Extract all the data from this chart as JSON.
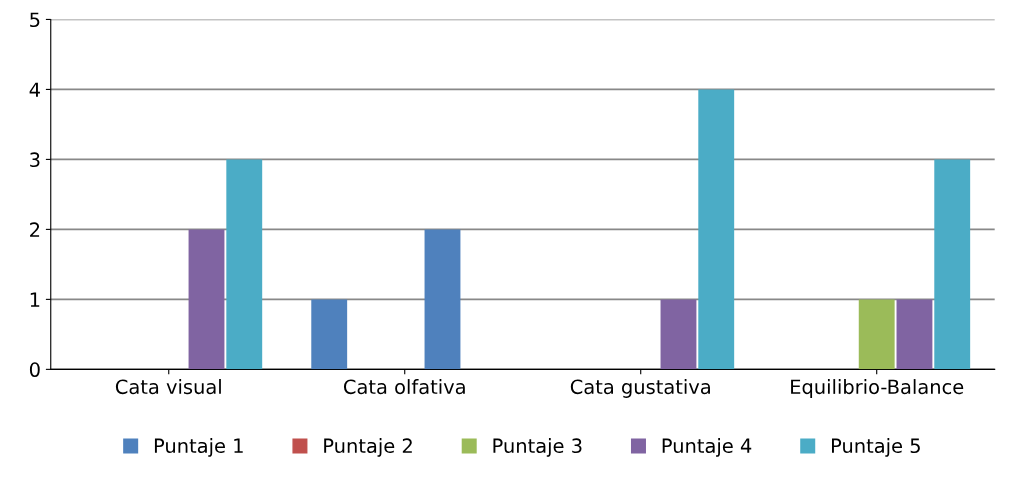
{
  "chart_data": {
    "type": "bar",
    "categories": [
      "Cata visual",
      "Cata olfativa",
      "Cata gustativa",
      "Equilibrio-Balance"
    ],
    "series": [
      {
        "name": "Puntaje 1",
        "color": "#4f81bd",
        "values": [
          0,
          1,
          0,
          0
        ]
      },
      {
        "name": "Puntaje 2",
        "color": "#c0504d",
        "values": [
          0,
          0,
          0,
          0
        ]
      },
      {
        "name": "Puntaje 3",
        "color": "#9bbb59",
        "values": [
          0,
          0,
          0,
          1
        ]
      },
      {
        "name": "Puntaje 4",
        "color": "#8064a2",
        "colors": [
          "#8064a2",
          "#4f81bd",
          "#8064a2",
          "#8064a2"
        ],
        "values": [
          2,
          2,
          1,
          1
        ]
      },
      {
        "name": "Puntaje 5",
        "color": "#4bacc6",
        "values": [
          3,
          0,
          4,
          3
        ]
      }
    ],
    "ylim": [
      0,
      5
    ],
    "yticks": [
      0,
      1,
      2,
      3,
      4,
      5
    ],
    "grid": "y",
    "legend": "bottom"
  }
}
